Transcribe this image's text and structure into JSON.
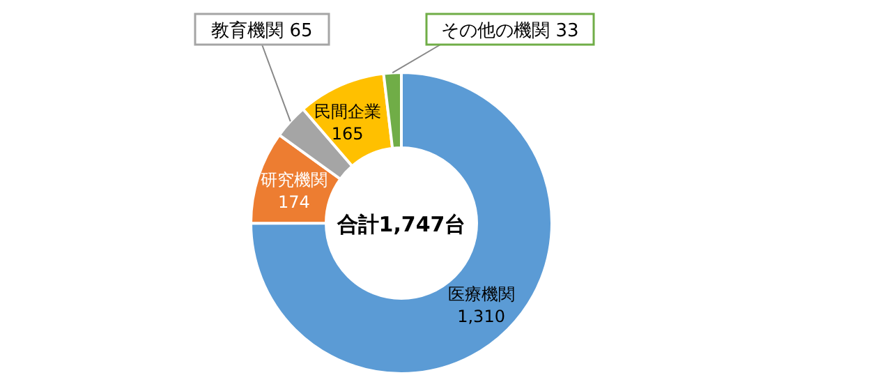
{
  "chart_data": {
    "type": "donut",
    "categories": [
      "医療機関",
      "研究機関",
      "教育機関",
      "民間企業",
      "その他の機関"
    ],
    "values": [
      1310,
      174,
      65,
      165,
      33
    ],
    "value_labels": [
      "1,310",
      "174",
      "65",
      "165",
      "33"
    ],
    "colors": [
      "#5b9bd5",
      "#ed7d31",
      "#a5a5a5",
      "#ffc000",
      "#70ad47"
    ],
    "annotations": [
      "合計1,747台"
    ]
  }
}
